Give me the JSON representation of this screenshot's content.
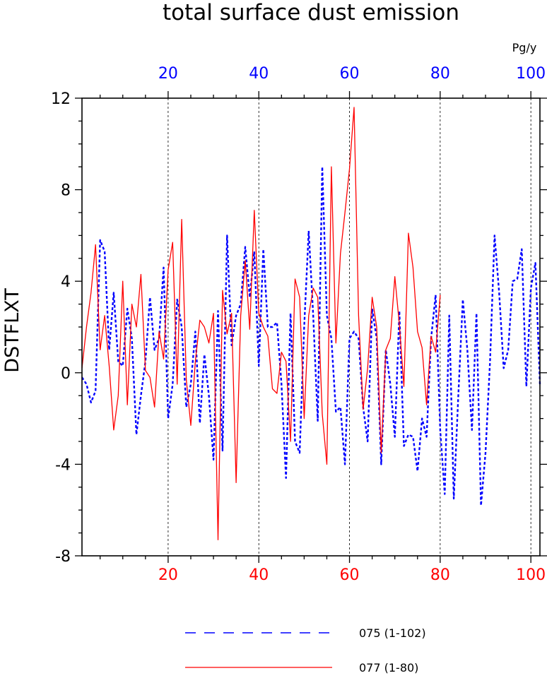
{
  "chart_data": {
    "type": "line",
    "title": "total surface dust emission",
    "ylabel": "DSTFLXT",
    "top_axis_units": "Pg/y",
    "ylim": [
      -8,
      12
    ],
    "xlim": [
      1,
      102
    ],
    "yticks": [
      -8,
      -4,
      0,
      4,
      8,
      12
    ],
    "xticks_bottom": [
      20,
      40,
      60,
      80,
      100
    ],
    "xticks_top": [
      20,
      40,
      60,
      80,
      100
    ],
    "vertical_grid": [
      20,
      40,
      60,
      80,
      100
    ],
    "legend_position": "bottom",
    "colors": {
      "series_075": "#0000ff",
      "series_077": "#ff0000",
      "bottom_ticks": "#ff0000",
      "top_ticks": "#0000ff"
    },
    "series": [
      {
        "name": "075 (1-102)",
        "style": "dashed",
        "x_start": 1,
        "values": [
          -0.2,
          -0.5,
          -1.3,
          -0.8,
          5.8,
          5.3,
          1.0,
          3.5,
          0.5,
          0.3,
          2.8,
          1.5,
          -2.7,
          -1.0,
          0.5,
          3.3,
          1.0,
          1.5,
          4.6,
          -2.0,
          -0.5,
          3.2,
          2.0,
          -1.5,
          -0.5,
          1.8,
          -2.2,
          0.8,
          -1.0,
          -3.8,
          2.7,
          -3.4,
          6.0,
          1.2,
          2.5,
          3.0,
          5.5,
          3.3,
          5.3,
          0.3,
          5.4,
          2.0,
          2.0,
          2.2,
          -0.5,
          -4.6,
          2.6,
          -3.0,
          -3.5,
          2.0,
          6.2,
          2.5,
          -2.1,
          9.0,
          2.5,
          1.5,
          -1.7,
          -1.5,
          -4.0,
          1.5,
          1.8,
          1.5,
          -1.5,
          -3.0,
          2.8,
          1.5,
          -4.0,
          1.0,
          -0.5,
          -2.8,
          2.7,
          -3.2,
          -2.7,
          -2.8,
          -4.3,
          -2.0,
          -2.8,
          1.5,
          3.4,
          -2.5,
          -5.3,
          2.5,
          -5.5,
          -1.0,
          3.2,
          1.0,
          -2.5,
          2.6,
          -5.8,
          -3.5,
          0.5,
          6.0,
          3.5,
          0.2,
          1.0,
          4.0,
          4.1,
          5.4,
          -0.6,
          3.7,
          4.8,
          -0.5
        ]
      },
      {
        "name": "077 (1-80)",
        "style": "solid",
        "x_start": 1,
        "values": [
          0.2,
          2.0,
          3.5,
          5.6,
          1.0,
          2.5,
          0.3,
          -2.5,
          -1.0,
          4.0,
          -1.4,
          3.0,
          2.0,
          4.3,
          0.1,
          -0.2,
          -1.5,
          1.8,
          0.6,
          4.5,
          5.7,
          -0.5,
          6.7,
          -0.3,
          -2.3,
          0.5,
          2.3,
          2.0,
          1.3,
          2.6,
          -7.3,
          3.6,
          1.7,
          2.6,
          -4.8,
          2.5,
          4.9,
          1.9,
          7.1,
          2.6,
          2.0,
          1.6,
          -0.7,
          -0.9,
          0.9,
          0.5,
          -3.0,
          4.1,
          3.3,
          -2.0,
          2.5,
          3.7,
          3.3,
          -1.8,
          -4.0,
          9.0,
          1.3,
          5.2,
          7.0,
          8.9,
          11.6,
          2.5,
          -1.6,
          0.2,
          3.3,
          2.0,
          -3.5,
          1.0,
          1.5,
          4.2,
          2.1,
          -0.6,
          6.1,
          4.6,
          1.8,
          1.1,
          -1.4,
          1.6,
          0.9,
          3.4
        ]
      }
    ]
  }
}
